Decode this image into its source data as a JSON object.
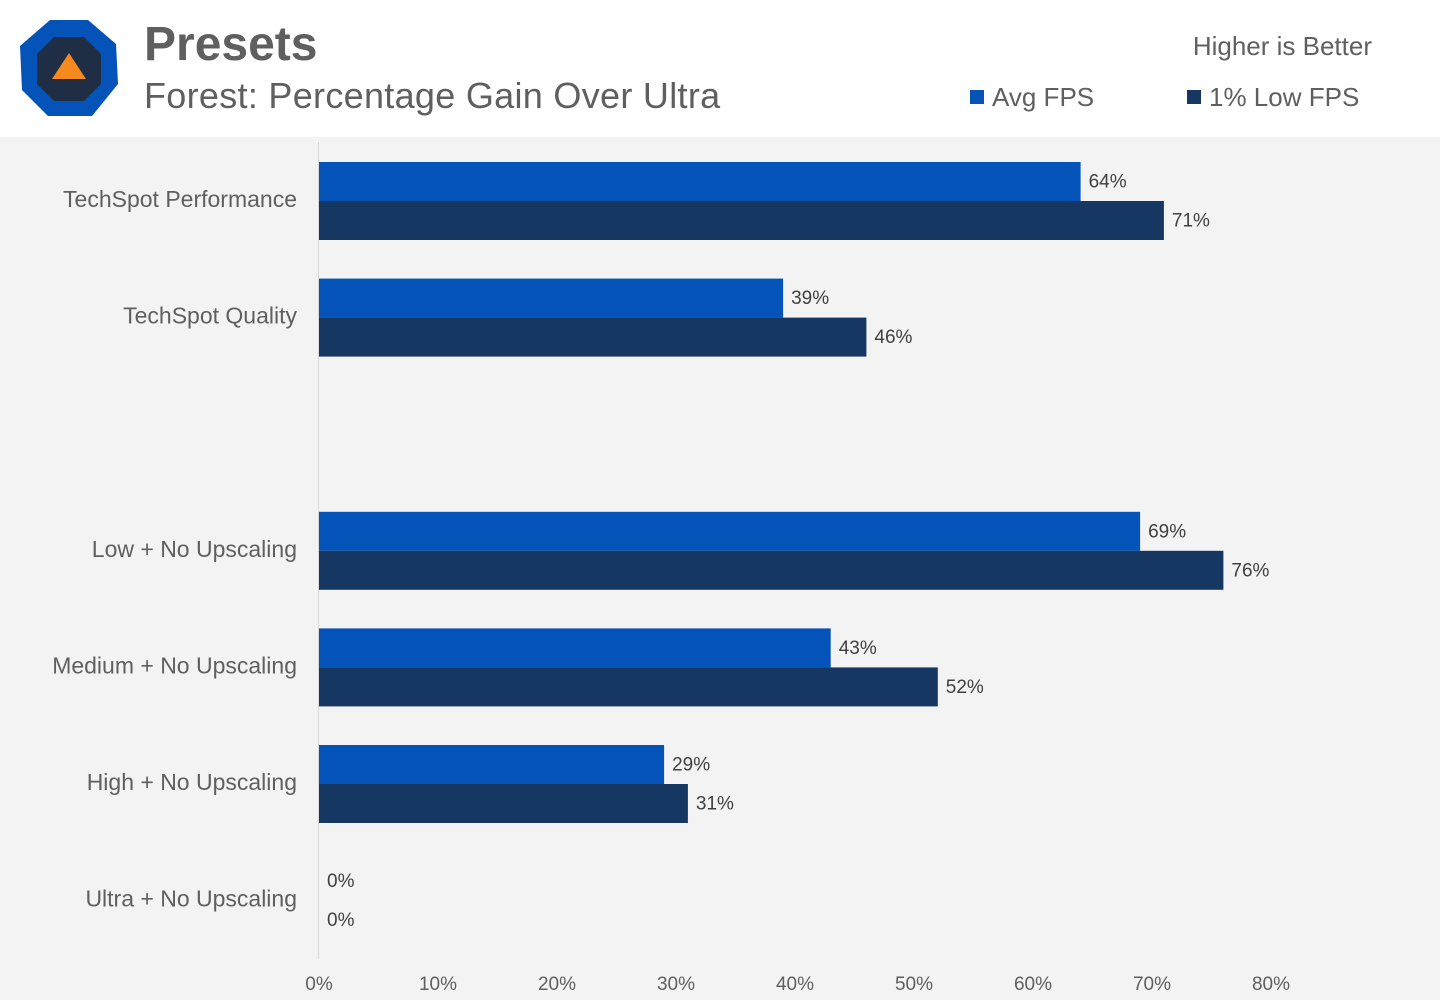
{
  "header": {
    "title": "Presets",
    "subtitle": "Forest: Percentage Gain Over Ultra",
    "note": "Higher is Better"
  },
  "colors": {
    "avg": "#0353b8",
    "low": "#163762",
    "text": "#5f5f5f",
    "logo_outer": "#0353b8",
    "logo_inner": "#1f2d45",
    "logo_triangle": "#f68a1e"
  },
  "legend": [
    {
      "name": "Avg FPS",
      "color": "#0353b8"
    },
    {
      "name": "1% Low FPS",
      "color": "#163762"
    }
  ],
  "chart_data": {
    "type": "bar",
    "orientation": "horizontal",
    "categories": [
      "TechSpot Performance",
      "TechSpot Quality",
      "",
      "Low + No Upscaling",
      "Medium + No Upscaling",
      "High + No Upscaling",
      "Ultra + No Upscaling"
    ],
    "series": [
      {
        "name": "Avg FPS",
        "values": [
          64,
          39,
          null,
          69,
          43,
          29,
          0
        ]
      },
      {
        "name": "1% Low FPS",
        "values": [
          71,
          46,
          null,
          76,
          52,
          31,
          0
        ]
      }
    ],
    "value_suffix": "%",
    "xlim": [
      0,
      80
    ],
    "xticks": [
      "0%",
      "10%",
      "20%",
      "30%",
      "40%",
      "50%",
      "60%",
      "70%",
      "80%"
    ],
    "grid": false,
    "legend_position": "top-right"
  }
}
